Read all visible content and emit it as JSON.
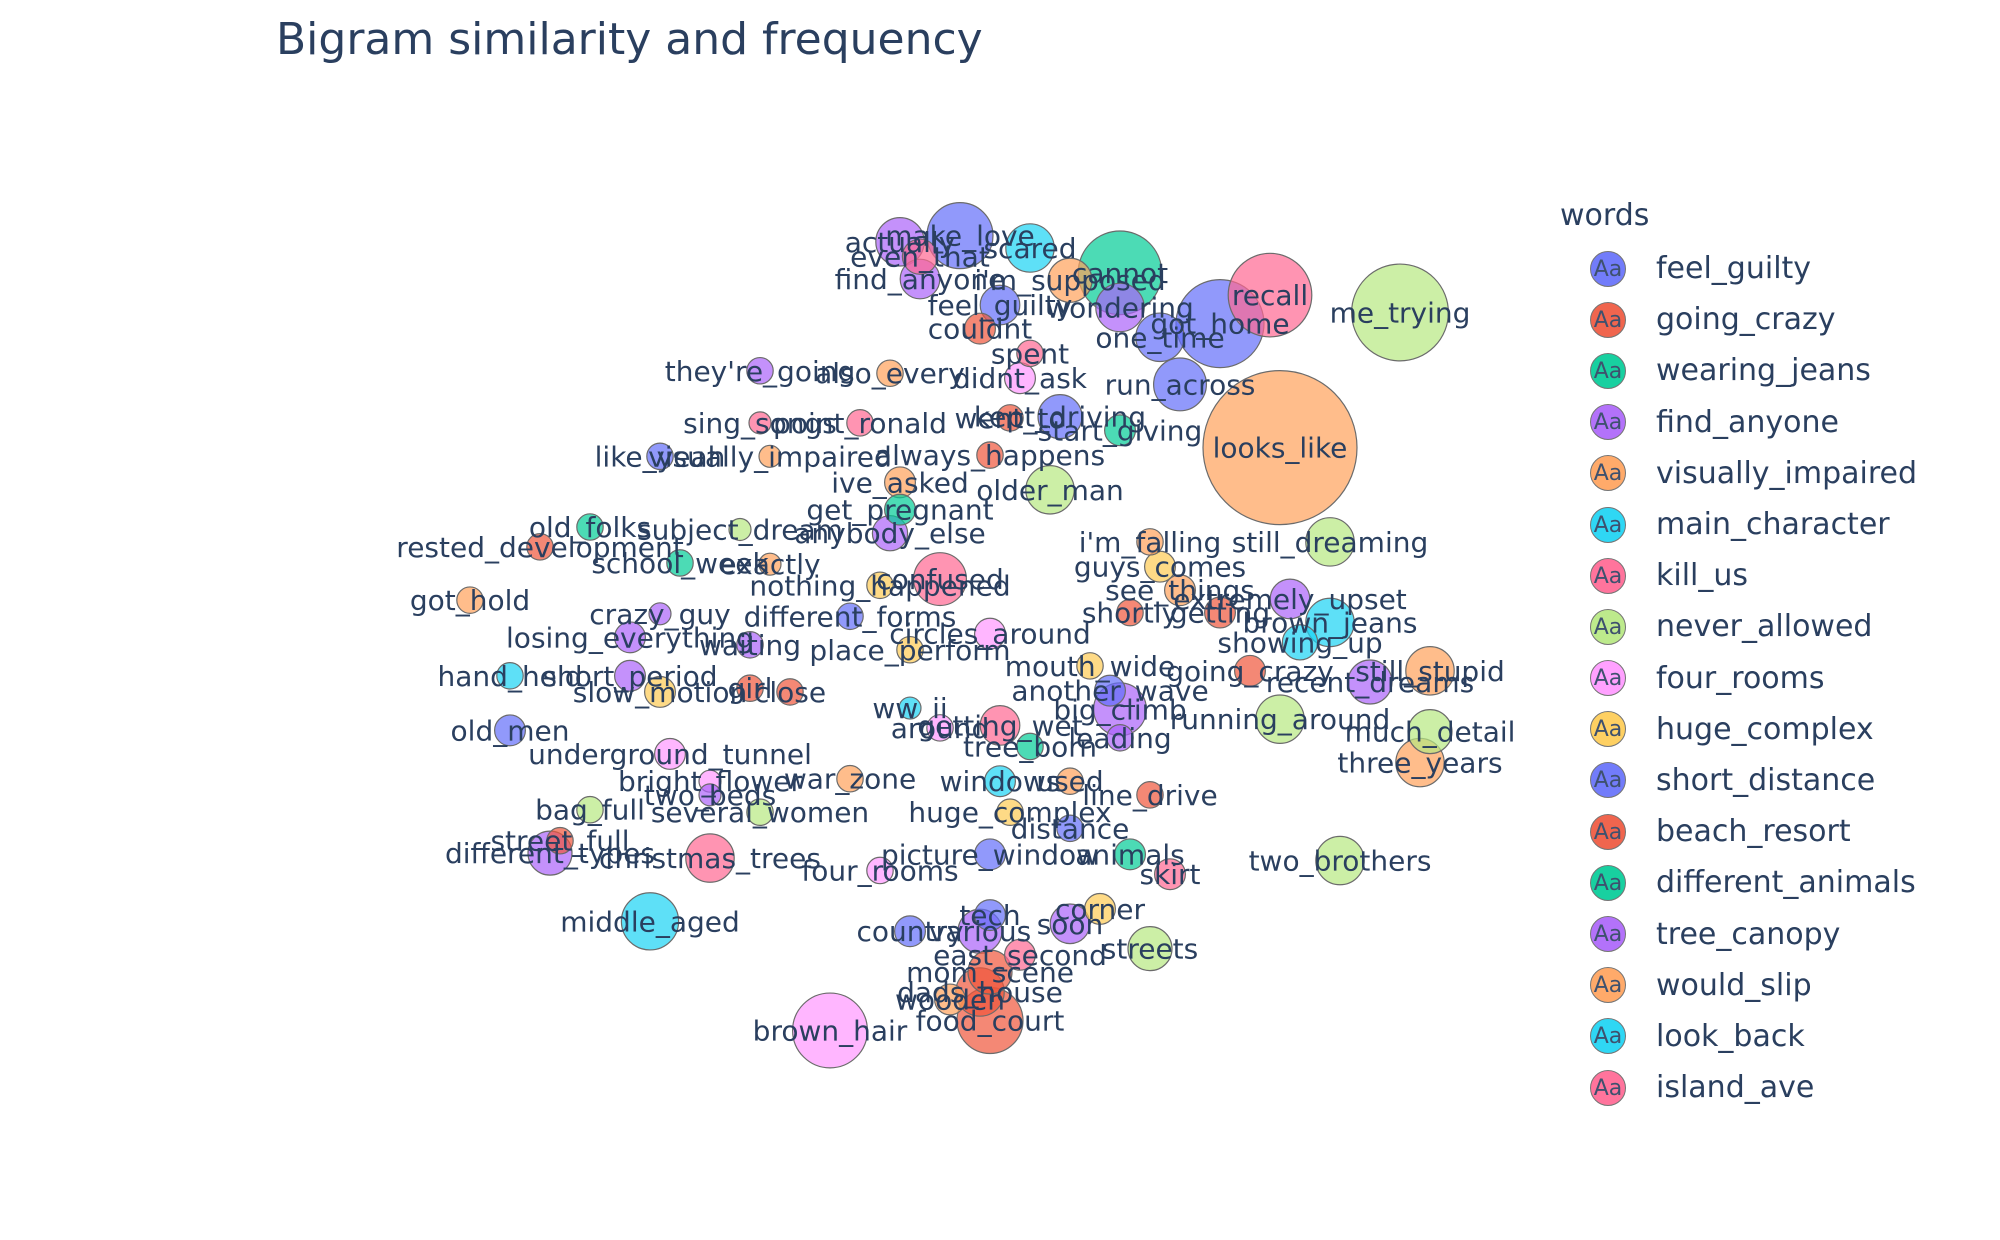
{
  "chart_data": {
    "type": "scatter",
    "title": "Bigram similarity and frequency",
    "legend": {
      "title": "words",
      "placement": "right",
      "entries": [
        {
          "name": "feel_guilty",
          "color": "#636efa"
        },
        {
          "name": "going_crazy",
          "color": "#ef553b"
        },
        {
          "name": "wearing_jeans",
          "color": "#00cc96"
        },
        {
          "name": "find_anyone",
          "color": "#ab63fa"
        },
        {
          "name": "visually_impaired",
          "color": "#ffa15a"
        },
        {
          "name": "main_character",
          "color": "#19d3f3"
        },
        {
          "name": "kill_us",
          "color": "#ff6692"
        },
        {
          "name": "never_allowed",
          "color": "#b6e880"
        },
        {
          "name": "four_rooms",
          "color": "#ff97ff"
        },
        {
          "name": "huge_complex",
          "color": "#fecb52"
        },
        {
          "name": "short_distance",
          "color": "#636efa"
        },
        {
          "name": "beach_resort",
          "color": "#ef553b"
        },
        {
          "name": "different_animals",
          "color": "#00cc96"
        },
        {
          "name": "tree_canopy",
          "color": "#ab63fa"
        },
        {
          "name": "would_slip",
          "color": "#ffa15a"
        },
        {
          "name": "look_back",
          "color": "#19d3f3"
        },
        {
          "name": "island_ave",
          "color": "#ff6692"
        }
      ],
      "swatch_text": "Aa"
    },
    "xlim": [
      0,
      100
    ],
    "ylim": [
      0,
      100
    ],
    "grid": false,
    "points": [
      {
        "label": "looks_like",
        "x": 64.0,
        "y": 63.9,
        "size": 70,
        "color": "#ffa15a"
      },
      {
        "label": "me_trying",
        "x": 70.0,
        "y": 74.8,
        "size": 44,
        "color": "#b6e880"
      },
      {
        "label": "recall",
        "x": 63.5,
        "y": 76.2,
        "size": 38,
        "color": "#ff6692"
      },
      {
        "label": "got_home",
        "x": 61.0,
        "y": 73.9,
        "size": 40,
        "color": "#636efa"
      },
      {
        "label": "cannot",
        "x": 56.0,
        "y": 78.0,
        "size": 38,
        "color": "#00cc96"
      },
      {
        "label": "make_love",
        "x": 48.0,
        "y": 81.0,
        "size": 30,
        "color": "#636efa"
      },
      {
        "label": "actually",
        "x": 45.0,
        "y": 80.5,
        "size": 22,
        "color": "#ab63fa"
      },
      {
        "label": "even_that",
        "x": 46.0,
        "y": 79.3,
        "size": 16,
        "color": "#ff6692"
      },
      {
        "label": "scared",
        "x": 51.5,
        "y": 80.0,
        "size": 22,
        "color": "#19d3f3"
      },
      {
        "label": "find_anyone",
        "x": 46.0,
        "y": 77.5,
        "size": 18,
        "color": "#ab63fa"
      },
      {
        "label": "i'm_supposed",
        "x": 53.5,
        "y": 77.4,
        "size": 20,
        "color": "#ffa15a"
      },
      {
        "label": "feel_guilty",
        "x": 50.0,
        "y": 75.4,
        "size": 18,
        "color": "#636efa"
      },
      {
        "label": "wondering",
        "x": 56.0,
        "y": 75.2,
        "size": 22,
        "color": "#ab63fa"
      },
      {
        "label": "couldnt",
        "x": 49.0,
        "y": 73.5,
        "size": 14,
        "color": "#ef553b"
      },
      {
        "label": "one_time",
        "x": 58.0,
        "y": 72.8,
        "size": 22,
        "color": "#636efa"
      },
      {
        "label": "spent",
        "x": 51.5,
        "y": 71.5,
        "size": 12,
        "color": "#ff6692"
      },
      {
        "label": "they're_going",
        "x": 38.0,
        "y": 70.1,
        "size": 12,
        "color": "#ab63fa"
      },
      {
        "label": "also_every",
        "x": 44.5,
        "y": 69.9,
        "size": 12,
        "color": "#ffa15a"
      },
      {
        "label": "didnt_ask",
        "x": 51.0,
        "y": 69.5,
        "size": 14,
        "color": "#ff97ff"
      },
      {
        "label": "run_across",
        "x": 59.0,
        "y": 69.0,
        "size": 24,
        "color": "#636efa"
      },
      {
        "label": "sing_songs",
        "x": 38.0,
        "y": 65.9,
        "size": 10,
        "color": "#ff6692"
      },
      {
        "label": "point_ronald",
        "x": 43.0,
        "y": 65.9,
        "size": 12,
        "color": "#ff6692"
      },
      {
        "label": "went_to",
        "x": 50.5,
        "y": 66.3,
        "size": 12,
        "color": "#ef553b"
      },
      {
        "label": "kept_driving",
        "x": 53.0,
        "y": 66.4,
        "size": 20,
        "color": "#636efa"
      },
      {
        "label": "start_giving",
        "x": 56.0,
        "y": 65.3,
        "size": 14,
        "color": "#00cc96"
      },
      {
        "label": "like_yeah",
        "x": 33.0,
        "y": 63.2,
        "size": 12,
        "color": "#636efa"
      },
      {
        "label": "visually_impaired",
        "x": 38.5,
        "y": 63.2,
        "size": 10,
        "color": "#ffa15a"
      },
      {
        "label": "always_happens",
        "x": 49.5,
        "y": 63.3,
        "size": 12,
        "color": "#ef553b"
      },
      {
        "label": "ive_asked",
        "x": 45.0,
        "y": 61.1,
        "size": 14,
        "color": "#ffa15a"
      },
      {
        "label": "older_man",
        "x": 52.5,
        "y": 60.5,
        "size": 22,
        "color": "#b6e880"
      },
      {
        "label": "get_pregnant",
        "x": 45.0,
        "y": 58.9,
        "size": 14,
        "color": "#00cc96"
      },
      {
        "label": "old_folks",
        "x": 29.5,
        "y": 57.5,
        "size": 12,
        "color": "#00cc96"
      },
      {
        "label": "subject_dream",
        "x": 37.0,
        "y": 57.3,
        "size": 10,
        "color": "#b6e880"
      },
      {
        "label": "anybody_else",
        "x": 44.5,
        "y": 57.0,
        "size": 16,
        "color": "#ab63fa"
      },
      {
        "label": "rested_development",
        "x": 27.0,
        "y": 55.9,
        "size": 12,
        "color": "#ef553b"
      },
      {
        "label": "i'm_falling",
        "x": 57.5,
        "y": 56.3,
        "size": 12,
        "color": "#ffa15a"
      },
      {
        "label": "still_dreaming",
        "x": 66.5,
        "y": 56.3,
        "size": 22,
        "color": "#b6e880"
      },
      {
        "label": "school_week",
        "x": 34.0,
        "y": 54.6,
        "size": 12,
        "color": "#00cc96"
      },
      {
        "label": "exactly",
        "x": 38.5,
        "y": 54.5,
        "size": 10,
        "color": "#ffa15a"
      },
      {
        "label": "guys_comes",
        "x": 58.0,
        "y": 54.3,
        "size": 14,
        "color": "#fecb52"
      },
      {
        "label": "confused",
        "x": 47.0,
        "y": 53.3,
        "size": 24,
        "color": "#ff6692"
      },
      {
        "label": "nothing_happened",
        "x": 44.0,
        "y": 52.8,
        "size": 12,
        "color": "#fecb52"
      },
      {
        "label": "see_things",
        "x": 59.0,
        "y": 52.4,
        "size": 14,
        "color": "#ffa15a"
      },
      {
        "label": "extremely_upset",
        "x": 64.5,
        "y": 51.7,
        "size": 18,
        "color": "#ab63fa"
      },
      {
        "label": "got_hold",
        "x": 23.5,
        "y": 51.6,
        "size": 12,
        "color": "#ffa15a"
      },
      {
        "label": "crazy_guy",
        "x": 33.0,
        "y": 50.5,
        "size": 10,
        "color": "#ab63fa"
      },
      {
        "label": "different_forms",
        "x": 42.5,
        "y": 50.3,
        "size": 12,
        "color": "#636efa"
      },
      {
        "label": "shortly",
        "x": 56.5,
        "y": 50.6,
        "size": 12,
        "color": "#ef553b"
      },
      {
        "label": "getting",
        "x": 61.0,
        "y": 50.6,
        "size": 14,
        "color": "#ef553b"
      },
      {
        "label": "brown_jeans",
        "x": 66.5,
        "y": 49.8,
        "size": 22,
        "color": "#19d3f3"
      },
      {
        "label": "losing_everything",
        "x": 31.5,
        "y": 48.6,
        "size": 14,
        "color": "#ab63fa"
      },
      {
        "label": "circles_around",
        "x": 49.5,
        "y": 48.9,
        "size": 14,
        "color": "#ff97ff"
      },
      {
        "label": "showing_up",
        "x": 65.0,
        "y": 48.2,
        "size": 16,
        "color": "#19d3f3"
      },
      {
        "label": "waiting",
        "x": 37.5,
        "y": 48.0,
        "size": 12,
        "color": "#ab63fa"
      },
      {
        "label": "place_perform",
        "x": 45.5,
        "y": 47.6,
        "size": 12,
        "color": "#fecb52"
      },
      {
        "label": "mouth_wide",
        "x": 54.5,
        "y": 46.3,
        "size": 12,
        "color": "#fecb52"
      },
      {
        "label": "hand_held",
        "x": 25.5,
        "y": 45.5,
        "size": 12,
        "color": "#19d3f3"
      },
      {
        "label": "short_period",
        "x": 31.5,
        "y": 45.5,
        "size": 14,
        "color": "#ab63fa"
      },
      {
        "label": "going_crazy",
        "x": 62.5,
        "y": 45.9,
        "size": 14,
        "color": "#ef553b"
      },
      {
        "label": "still_stupid",
        "x": 71.5,
        "y": 45.9,
        "size": 22,
        "color": "#ffa15a"
      },
      {
        "label": "recent_dreams",
        "x": 68.5,
        "y": 45.0,
        "size": 20,
        "color": "#ab63fa"
      },
      {
        "label": "another_wave",
        "x": 55.5,
        "y": 44.3,
        "size": 14,
        "color": "#636efa"
      },
      {
        "label": "slow_motion",
        "x": 33.0,
        "y": 44.2,
        "size": 14,
        "color": "#fecb52"
      },
      {
        "label": "girl",
        "x": 37.5,
        "y": 44.5,
        "size": 12,
        "color": "#ef553b"
      },
      {
        "label": "close",
        "x": 39.5,
        "y": 44.2,
        "size": 12,
        "color": "#ef553b"
      },
      {
        "label": "ww_ii",
        "x": 45.5,
        "y": 42.9,
        "size": 10,
        "color": "#19d3f3"
      },
      {
        "label": "big_climb",
        "x": 56.0,
        "y": 42.8,
        "size": 24,
        "color": "#ab63fa"
      },
      {
        "label": "running_around",
        "x": 64.0,
        "y": 42.0,
        "size": 22,
        "color": "#b6e880"
      },
      {
        "label": "much_detail",
        "x": 71.5,
        "y": 41.0,
        "size": 20,
        "color": "#b6e880"
      },
      {
        "label": "old_men",
        "x": 25.5,
        "y": 41.1,
        "size": 14,
        "color": "#636efa"
      },
      {
        "label": "getting_wet",
        "x": 50.0,
        "y": 41.5,
        "size": 18,
        "color": "#ff6692"
      },
      {
        "label": "around",
        "x": 47.0,
        "y": 41.3,
        "size": 12,
        "color": "#ff97ff"
      },
      {
        "label": "leading",
        "x": 56.0,
        "y": 40.5,
        "size": 12,
        "color": "#ab63fa"
      },
      {
        "label": "tree_born",
        "x": 51.5,
        "y": 39.8,
        "size": 12,
        "color": "#00cc96"
      },
      {
        "label": "three_years",
        "x": 71.0,
        "y": 38.5,
        "size": 22,
        "color": "#ffa15a"
      },
      {
        "label": "underground_tunnel",
        "x": 33.5,
        "y": 39.2,
        "size": 14,
        "color": "#ff97ff"
      },
      {
        "label": "bright_flower",
        "x": 35.5,
        "y": 37.0,
        "size": 10,
        "color": "#ff97ff"
      },
      {
        "label": "war_zone",
        "x": 42.5,
        "y": 37.2,
        "size": 12,
        "color": "#ffa15a"
      },
      {
        "label": "windows",
        "x": 50.0,
        "y": 37.0,
        "size": 14,
        "color": "#19d3f3"
      },
      {
        "label": "used",
        "x": 53.5,
        "y": 37.0,
        "size": 12,
        "color": "#ffa15a"
      },
      {
        "label": "line_drive",
        "x": 57.5,
        "y": 35.9,
        "size": 12,
        "color": "#ef553b"
      },
      {
        "label": "two_beds",
        "x": 35.5,
        "y": 35.9,
        "size": 10,
        "color": "#ab63fa"
      },
      {
        "label": "bag_full",
        "x": 29.5,
        "y": 34.7,
        "size": 12,
        "color": "#b6e880"
      },
      {
        "label": "several_women",
        "x": 38.0,
        "y": 34.5,
        "size": 12,
        "color": "#b6e880"
      },
      {
        "label": "huge_complex",
        "x": 50.5,
        "y": 34.5,
        "size": 12,
        "color": "#fecb52"
      },
      {
        "label": "distance",
        "x": 53.5,
        "y": 33.2,
        "size": 12,
        "color": "#636efa"
      },
      {
        "label": "street_full",
        "x": 28.0,
        "y": 32.2,
        "size": 12,
        "color": "#ef553b"
      },
      {
        "label": "different_types",
        "x": 27.5,
        "y": 31.2,
        "size": 20,
        "color": "#ab63fa"
      },
      {
        "label": "christmas_trees",
        "x": 35.5,
        "y": 30.8,
        "size": 22,
        "color": "#ff6692"
      },
      {
        "label": "picture_window",
        "x": 49.5,
        "y": 31.1,
        "size": 14,
        "color": "#636efa"
      },
      {
        "label": "animals",
        "x": 56.5,
        "y": 31.1,
        "size": 14,
        "color": "#00cc96"
      },
      {
        "label": "four_rooms",
        "x": 44.0,
        "y": 29.8,
        "size": 12,
        "color": "#ff97ff"
      },
      {
        "label": "skirt",
        "x": 58.5,
        "y": 29.5,
        "size": 14,
        "color": "#ff6692"
      },
      {
        "label": "two_brothers",
        "x": 67.0,
        "y": 30.6,
        "size": 22,
        "color": "#b6e880"
      },
      {
        "label": "middle_aged",
        "x": 32.5,
        "y": 25.7,
        "size": 26,
        "color": "#19d3f3"
      },
      {
        "label": "tech",
        "x": 49.5,
        "y": 26.2,
        "size": 14,
        "color": "#636efa"
      },
      {
        "label": "corner",
        "x": 55.0,
        "y": 26.7,
        "size": 14,
        "color": "#fecb52"
      },
      {
        "label": "country",
        "x": 45.5,
        "y": 24.9,
        "size": 14,
        "color": "#636efa"
      },
      {
        "label": "various",
        "x": 49.0,
        "y": 24.9,
        "size": 20,
        "color": "#ab63fa"
      },
      {
        "label": "soon",
        "x": 53.5,
        "y": 25.5,
        "size": 18,
        "color": "#ab63fa"
      },
      {
        "label": "streets",
        "x": 57.5,
        "y": 23.5,
        "size": 20,
        "color": "#b6e880"
      },
      {
        "label": "east_second",
        "x": 51.0,
        "y": 23.0,
        "size": 14,
        "color": "#ff6692"
      },
      {
        "label": "mom_scene",
        "x": 49.5,
        "y": 21.6,
        "size": 20,
        "color": "#ef553b"
      },
      {
        "label": "dads_house",
        "x": 49.0,
        "y": 20.0,
        "size": 22,
        "color": "#ef553b"
      },
      {
        "label": "wooden",
        "x": 47.5,
        "y": 19.4,
        "size": 14,
        "color": "#ffa15a"
      },
      {
        "label": "food_court",
        "x": 49.5,
        "y": 17.7,
        "size": 30,
        "color": "#ef553b"
      },
      {
        "label": "brown_hair",
        "x": 41.5,
        "y": 16.9,
        "size": 34,
        "color": "#ff97ff"
      }
    ]
  }
}
